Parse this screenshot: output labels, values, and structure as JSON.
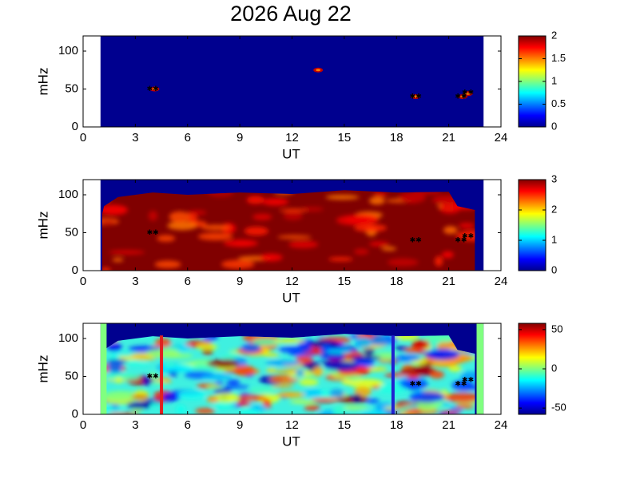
{
  "title": "2026 Aug 22",
  "chart_data": [
    {
      "type": "heatmap",
      "xlabel": "UT",
      "ylabel": "mHz",
      "xlim": [
        0,
        24
      ],
      "xticks": [
        0,
        3,
        6,
        9,
        12,
        15,
        18,
        21,
        24
      ],
      "ylim": [
        0,
        120
      ],
      "yticks": [
        0,
        50,
        100
      ],
      "colorbar": {
        "lim": [
          0,
          2
        ],
        "ticks": [
          0,
          0.5,
          1,
          1.5,
          2
        ]
      }
    },
    {
      "type": "heatmap",
      "xlabel": "UT",
      "ylabel": "mHz",
      "xlim": [
        0,
        24
      ],
      "xticks": [
        0,
        3,
        6,
        9,
        12,
        15,
        18,
        21,
        24
      ],
      "ylim": [
        0,
        120
      ],
      "yticks": [
        0,
        50,
        100
      ],
      "colorbar": {
        "lim": [
          0,
          3
        ],
        "ticks": [
          0,
          1,
          2,
          3
        ]
      }
    },
    {
      "type": "heatmap",
      "xlabel": "UT",
      "ylabel": "mHz",
      "xlim": [
        0,
        24
      ],
      "xticks": [
        0,
        3,
        6,
        9,
        12,
        15,
        18,
        21,
        24
      ],
      "ylim": [
        0,
        120
      ],
      "yticks": [
        0,
        50,
        100
      ],
      "colorbar": {
        "lim": [
          -58,
          58
        ],
        "ticks": [
          -50,
          0,
          50
        ]
      }
    }
  ]
}
